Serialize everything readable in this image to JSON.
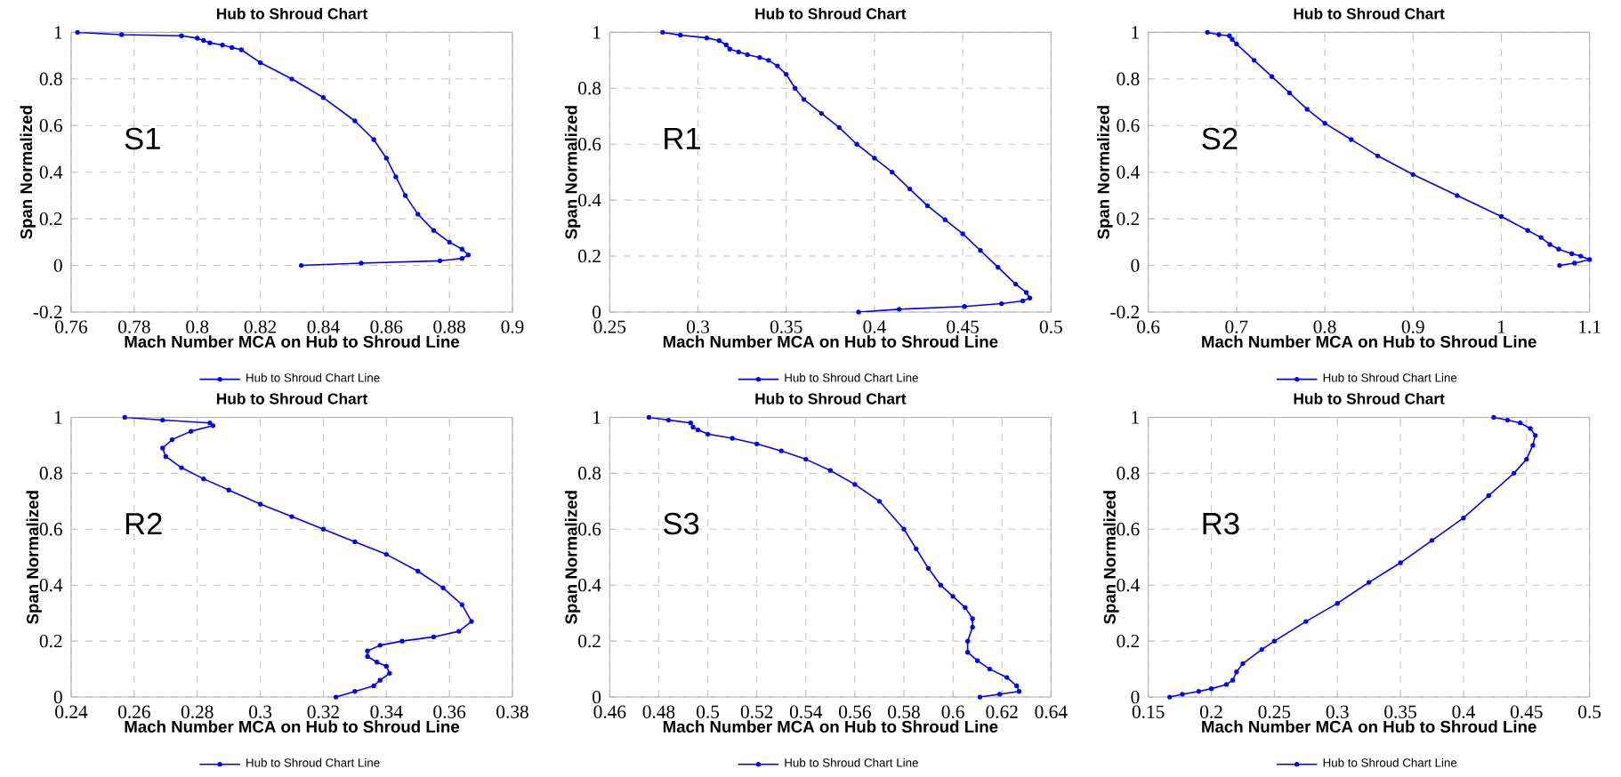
{
  "chart_data": [
    {
      "type": "line",
      "title": "Hub to Shroud Chart",
      "xlabel": "Mach Number MCA on Hub to Shroud Line",
      "ylabel": "Span Normalized",
      "annotations": [
        "S1"
      ],
      "xlim": [
        0.76,
        0.9
      ],
      "xticks": [
        0.76,
        0.78,
        0.8,
        0.82,
        0.84,
        0.86,
        0.88,
        0.9
      ],
      "ylim": [
        -0.2,
        1
      ],
      "yticks": [
        -0.2,
        0,
        0.2,
        0.4,
        0.6,
        0.8,
        1
      ],
      "grid": true,
      "legend": "bottom",
      "marker": "circle",
      "line_style": "solid",
      "series": [
        {
          "name": "Hub to Shroud Chart Line",
          "color": "#0000ff",
          "x": [
            0.762,
            0.776,
            0.795,
            0.8,
            0.802,
            0.804,
            0.808,
            0.811,
            0.814,
            0.82,
            0.83,
            0.84,
            0.85,
            0.856,
            0.86,
            0.863,
            0.866,
            0.87,
            0.875,
            0.88,
            0.884,
            0.886,
            0.884,
            0.877,
            0.852,
            0.833
          ],
          "values": [
            1.0,
            0.99,
            0.985,
            0.975,
            0.965,
            0.955,
            0.945,
            0.935,
            0.925,
            0.87,
            0.8,
            0.72,
            0.62,
            0.54,
            0.46,
            0.38,
            0.3,
            0.22,
            0.15,
            0.1,
            0.07,
            0.045,
            0.03,
            0.02,
            0.01,
            0.0
          ]
        }
      ]
    },
    {
      "type": "line",
      "title": "Hub to Shroud Chart",
      "xlabel": "Mach Number MCA on Hub to Shroud Line",
      "ylabel": "Span Normalized",
      "annotations": [
        "R1"
      ],
      "xlim": [
        0.25,
        0.5
      ],
      "xticks": [
        0.25,
        0.3,
        0.35,
        0.4,
        0.45,
        0.5
      ],
      "ylim": [
        0,
        1
      ],
      "yticks": [
        0,
        0.2,
        0.4,
        0.6,
        0.8,
        1
      ],
      "grid": true,
      "legend": "bottom",
      "marker": "circle",
      "line_style": "solid",
      "series": [
        {
          "name": "Hub to Shroud Chart Line",
          "color": "#0000ff",
          "x": [
            0.28,
            0.29,
            0.305,
            0.312,
            0.316,
            0.318,
            0.323,
            0.328,
            0.335,
            0.34,
            0.345,
            0.35,
            0.355,
            0.36,
            0.37,
            0.38,
            0.39,
            0.4,
            0.41,
            0.42,
            0.43,
            0.44,
            0.45,
            0.46,
            0.47,
            0.48,
            0.486,
            0.488,
            0.484,
            0.472,
            0.451,
            0.414,
            0.391
          ],
          "values": [
            1.0,
            0.99,
            0.98,
            0.97,
            0.955,
            0.94,
            0.93,
            0.92,
            0.91,
            0.9,
            0.88,
            0.85,
            0.8,
            0.76,
            0.71,
            0.66,
            0.6,
            0.55,
            0.5,
            0.44,
            0.38,
            0.33,
            0.28,
            0.22,
            0.16,
            0.1,
            0.07,
            0.05,
            0.04,
            0.03,
            0.02,
            0.01,
            0.0
          ]
        }
      ]
    },
    {
      "type": "line",
      "title": "Hub to Shroud Chart",
      "xlabel": "Mach Number MCA on Hub to Shroud Line",
      "ylabel": "Span Normalized",
      "annotations": [
        "S2"
      ],
      "xlim": [
        0.6,
        1.1
      ],
      "xticks": [
        0.6,
        0.7,
        0.8,
        0.9,
        1,
        1.1
      ],
      "ylim": [
        -0.2,
        1
      ],
      "yticks": [
        -0.2,
        0,
        0.2,
        0.4,
        0.6,
        0.8,
        1
      ],
      "grid": true,
      "legend": "bottom",
      "marker": "circle",
      "line_style": "solid",
      "series": [
        {
          "name": "Hub to Shroud Chart Line",
          "color": "#0000ff",
          "x": [
            0.667,
            0.68,
            0.692,
            0.695,
            0.7,
            0.72,
            0.74,
            0.76,
            0.78,
            0.8,
            0.83,
            0.86,
            0.9,
            0.95,
            1.0,
            1.03,
            1.045,
            1.055,
            1.065,
            1.08,
            1.09,
            1.1,
            1.083,
            1.066
          ],
          "values": [
            1.0,
            0.99,
            0.985,
            0.97,
            0.95,
            0.88,
            0.81,
            0.74,
            0.67,
            0.61,
            0.54,
            0.47,
            0.39,
            0.3,
            0.21,
            0.15,
            0.12,
            0.09,
            0.07,
            0.05,
            0.04,
            0.025,
            0.01,
            0.0
          ]
        }
      ]
    },
    {
      "type": "line",
      "title": "Hub to Shroud Chart",
      "xlabel": "Mach Number MCA on Hub to Shroud Line",
      "ylabel": "Span Normalized",
      "annotations": [
        "R2"
      ],
      "xlim": [
        0.24,
        0.38
      ],
      "xticks": [
        0.24,
        0.26,
        0.28,
        0.3,
        0.32,
        0.34,
        0.36,
        0.38
      ],
      "ylim": [
        0,
        1
      ],
      "yticks": [
        0,
        0.2,
        0.4,
        0.6,
        0.8,
        1
      ],
      "grid": true,
      "legend": "bottom",
      "marker": "circle",
      "line_style": "solid",
      "series": [
        {
          "name": "Hub to Shroud Chart Line",
          "color": "#0000ff",
          "x": [
            0.257,
            0.269,
            0.284,
            0.285,
            0.278,
            0.272,
            0.269,
            0.27,
            0.275,
            0.282,
            0.29,
            0.3,
            0.31,
            0.32,
            0.33,
            0.34,
            0.35,
            0.358,
            0.364,
            0.367,
            0.363,
            0.355,
            0.345,
            0.338,
            0.334,
            0.334,
            0.337,
            0.34,
            0.341,
            0.338,
            0.336,
            0.33,
            0.324
          ],
          "values": [
            1.0,
            0.99,
            0.98,
            0.97,
            0.95,
            0.92,
            0.89,
            0.86,
            0.82,
            0.78,
            0.74,
            0.69,
            0.645,
            0.6,
            0.555,
            0.51,
            0.45,
            0.39,
            0.33,
            0.27,
            0.235,
            0.215,
            0.2,
            0.185,
            0.165,
            0.145,
            0.125,
            0.11,
            0.085,
            0.06,
            0.04,
            0.02,
            0.0
          ]
        }
      ]
    },
    {
      "type": "line",
      "title": "Hub to Shroud Chart",
      "xlabel": "Mach Number MCA on Hub to Shroud Line",
      "ylabel": "Span Normalized",
      "annotations": [
        "S3"
      ],
      "xlim": [
        0.46,
        0.64
      ],
      "xticks": [
        0.46,
        0.48,
        0.5,
        0.52,
        0.54,
        0.56,
        0.58,
        0.6,
        0.62,
        0.64
      ],
      "ylim": [
        0,
        1
      ],
      "yticks": [
        0,
        0.2,
        0.4,
        0.6,
        0.8,
        1
      ],
      "grid": true,
      "legend": "bottom",
      "marker": "circle",
      "line_style": "solid",
      "series": [
        {
          "name": "Hub to Shroud Chart Line",
          "color": "#0000ff",
          "x": [
            0.476,
            0.484,
            0.493,
            0.494,
            0.496,
            0.5,
            0.51,
            0.52,
            0.53,
            0.54,
            0.55,
            0.56,
            0.57,
            0.58,
            0.585,
            0.59,
            0.595,
            0.6,
            0.605,
            0.608,
            0.608,
            0.606,
            0.606,
            0.61,
            0.615,
            0.622,
            0.626,
            0.627,
            0.619,
            0.611
          ],
          "values": [
            1.0,
            0.99,
            0.98,
            0.965,
            0.955,
            0.94,
            0.925,
            0.905,
            0.88,
            0.85,
            0.81,
            0.76,
            0.7,
            0.6,
            0.53,
            0.46,
            0.4,
            0.36,
            0.32,
            0.28,
            0.25,
            0.2,
            0.16,
            0.13,
            0.1,
            0.07,
            0.04,
            0.02,
            0.01,
            0.0
          ]
        }
      ]
    },
    {
      "type": "line",
      "title": "Hub to Shroud Chart",
      "xlabel": "Mach Number MCA on Hub to Shroud Line",
      "ylabel": "Span Normalized",
      "annotations": [
        "R3"
      ],
      "xlim": [
        0.15,
        0.5
      ],
      "xticks": [
        0.15,
        0.2,
        0.25,
        0.3,
        0.35,
        0.4,
        0.45,
        0.5
      ],
      "ylim": [
        0,
        1
      ],
      "yticks": [
        0,
        0.2,
        0.4,
        0.6,
        0.8,
        1
      ],
      "grid": true,
      "legend": "bottom",
      "marker": "circle",
      "line_style": "solid",
      "series": [
        {
          "name": "Hub to Shroud Chart Line",
          "color": "#0000ff",
          "x": [
            0.167,
            0.177,
            0.19,
            0.2,
            0.212,
            0.217,
            0.22,
            0.225,
            0.24,
            0.25,
            0.275,
            0.3,
            0.325,
            0.35,
            0.375,
            0.4,
            0.42,
            0.44,
            0.45,
            0.455,
            0.457,
            0.453,
            0.445,
            0.435,
            0.424
          ],
          "values": [
            0.0,
            0.01,
            0.02,
            0.03,
            0.045,
            0.06,
            0.09,
            0.12,
            0.17,
            0.2,
            0.27,
            0.335,
            0.41,
            0.48,
            0.56,
            0.64,
            0.72,
            0.8,
            0.85,
            0.9,
            0.935,
            0.96,
            0.98,
            0.99,
            1.0
          ]
        }
      ]
    }
  ]
}
